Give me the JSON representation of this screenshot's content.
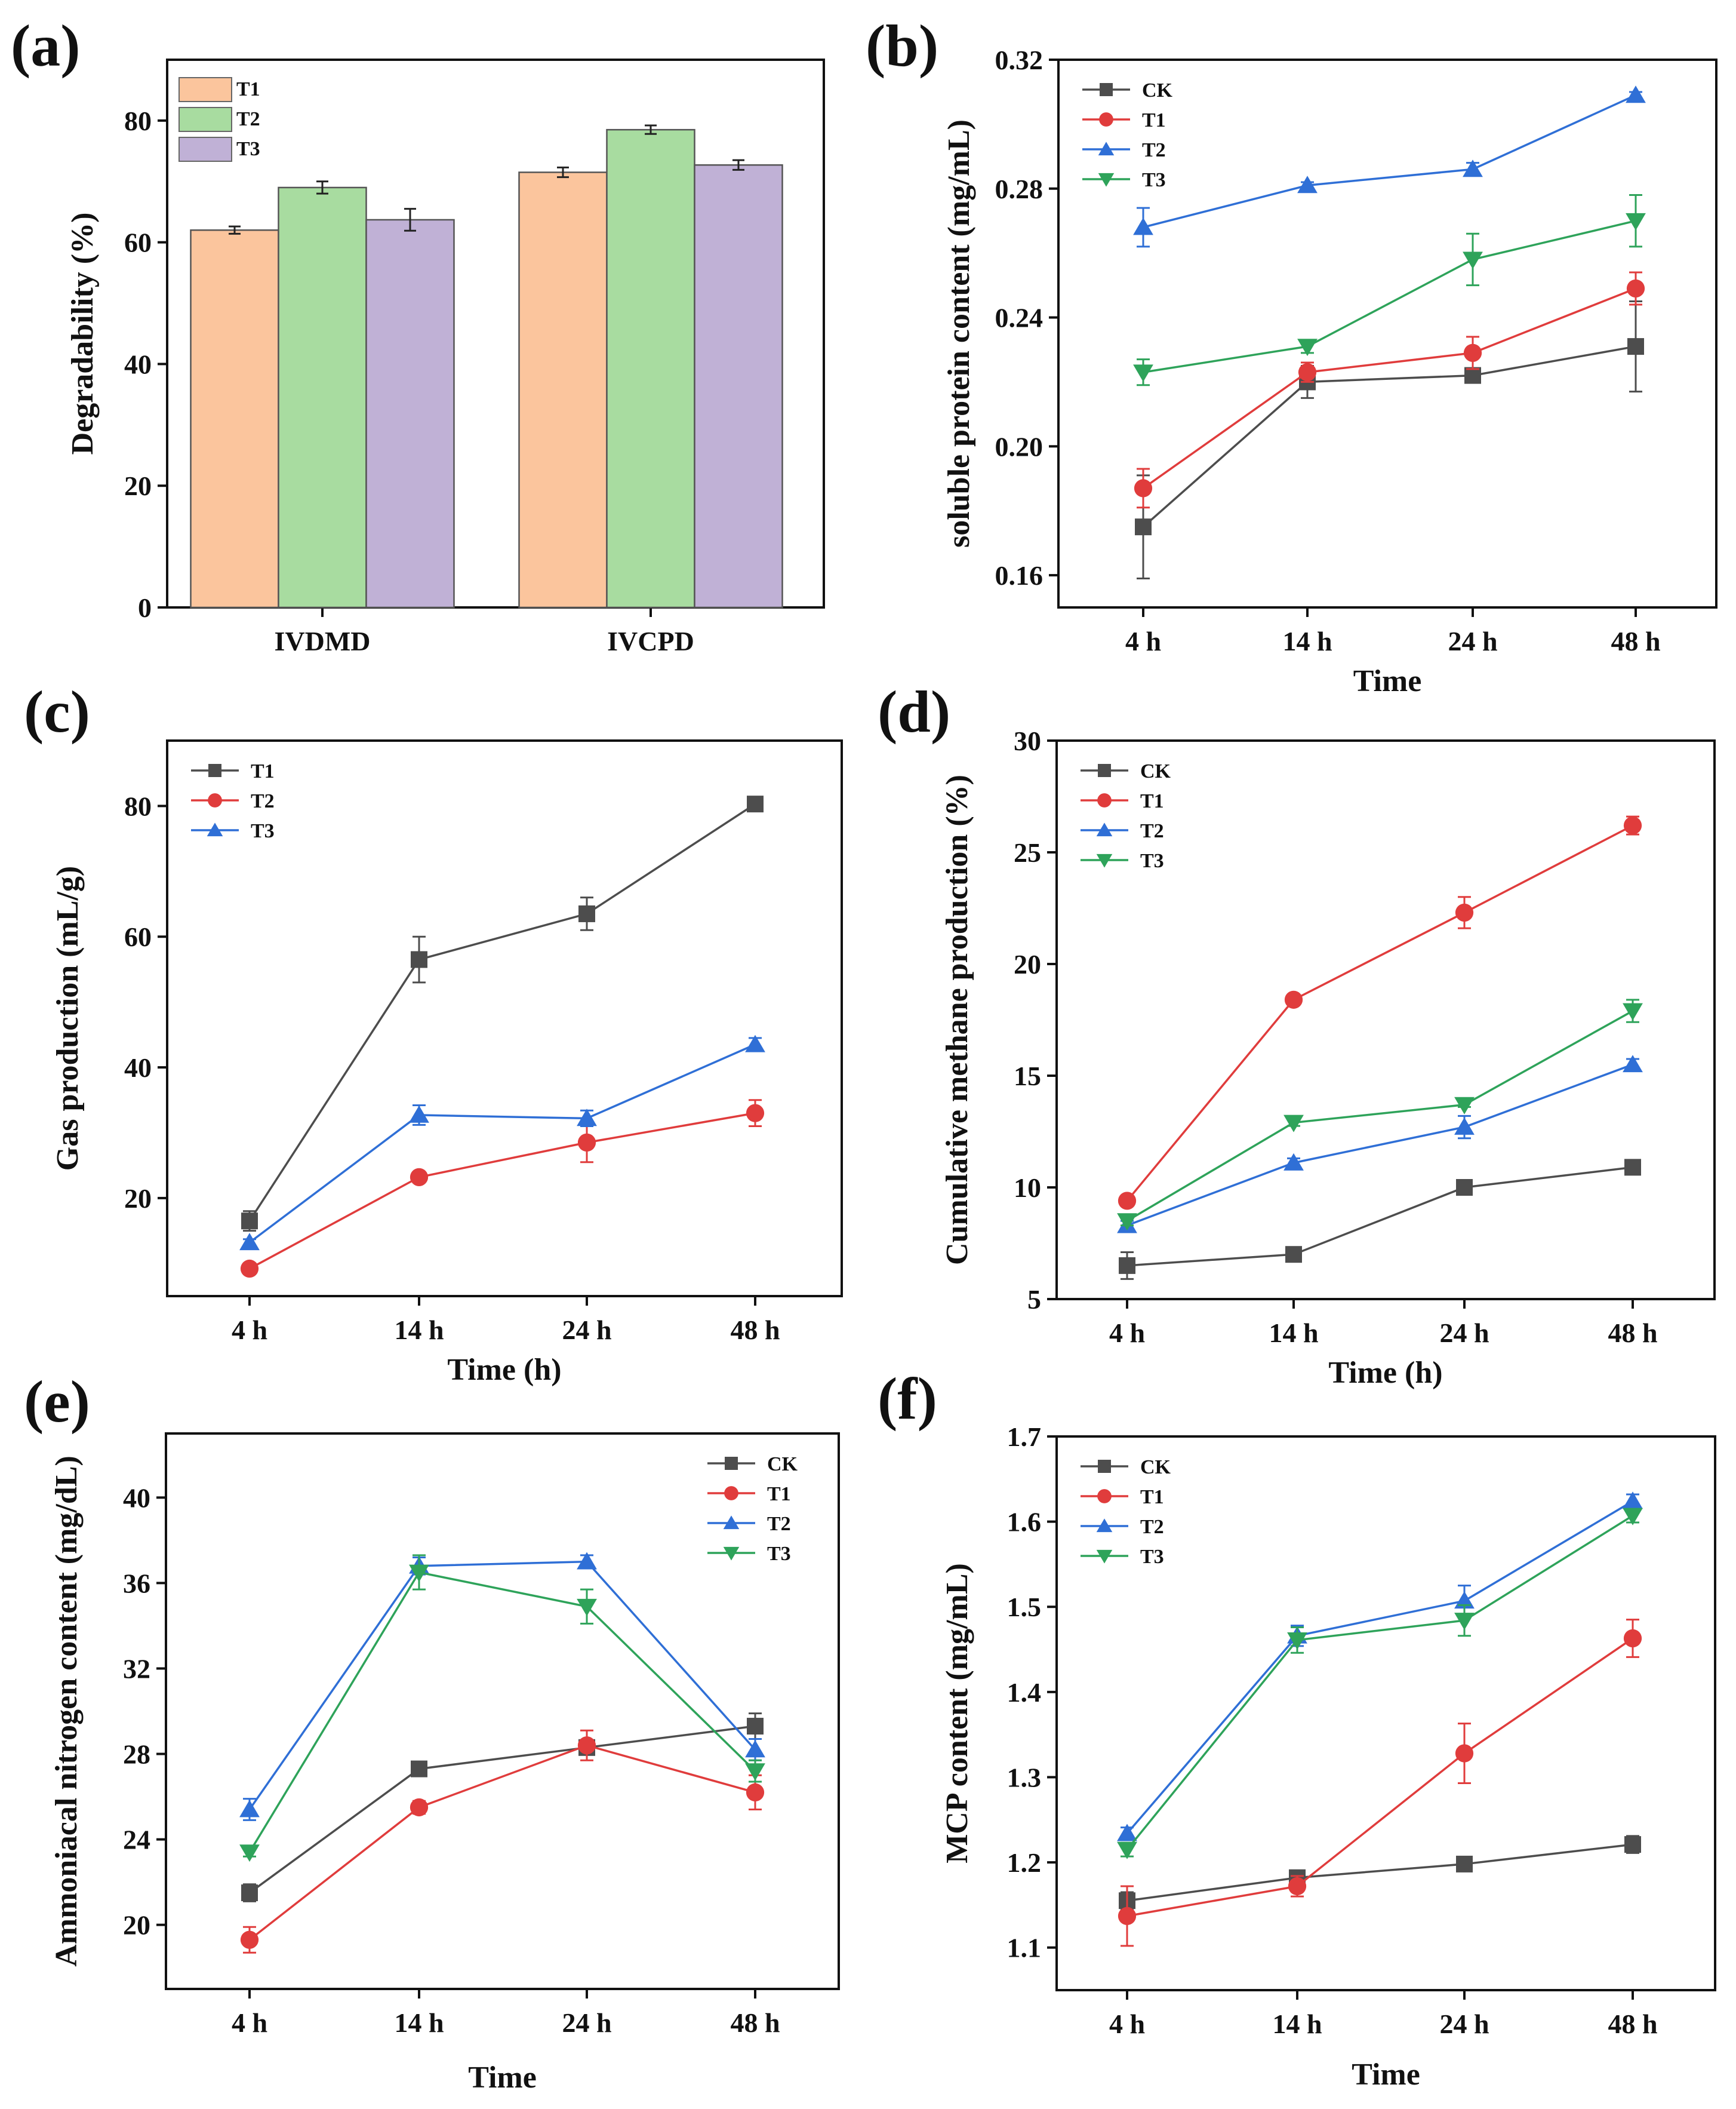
{
  "chart_data": [
    {
      "panel": "(a)",
      "type": "bar",
      "categories": [
        "IVDMD",
        "IVCPD"
      ],
      "series": [
        {
          "name": "T1",
          "values": [
            62.0,
            71.5
          ],
          "errors": [
            0.6,
            0.8
          ],
          "color": "#FBC59D"
        },
        {
          "name": "T2",
          "values": [
            69.0,
            78.5
          ],
          "errors": [
            1.0,
            0.7
          ],
          "color": "#A8DCA0"
        },
        {
          "name": "T3",
          "values": [
            63.7,
            72.7
          ],
          "errors": [
            1.8,
            0.8
          ],
          "color": "#C0B1D6"
        }
      ],
      "xlabel": "",
      "ylabel": "Degradability (%)",
      "ylim": [
        0,
        90
      ],
      "yticks": [
        "0",
        "20",
        "40",
        "60",
        "80"
      ],
      "legend": "top-left"
    },
    {
      "panel": "(b)",
      "type": "line",
      "categories": [
        "4 h",
        "14 h",
        "24 h",
        "48 h"
      ],
      "series": [
        {
          "name": "CK",
          "marker": "square",
          "color": "#4d4d4d",
          "values": [
            0.175,
            0.22,
            0.222,
            0.231
          ],
          "errors": [
            0.016,
            0.005,
            0.002,
            0.014
          ]
        },
        {
          "name": "T1",
          "marker": "circle",
          "color": "#e03c3c",
          "values": [
            0.187,
            0.223,
            0.229,
            0.249
          ],
          "errors": [
            0.006,
            0.003,
            0.005,
            0.005
          ]
        },
        {
          "name": "T2",
          "marker": "triangle-up",
          "color": "#2f6fd6",
          "values": [
            0.268,
            0.281,
            0.286,
            0.309
          ],
          "errors": [
            0.006,
            0.001,
            0.002,
            0.001
          ]
        },
        {
          "name": "T3",
          "marker": "triangle-down",
          "color": "#2ea35a",
          "values": [
            0.223,
            0.231,
            0.258,
            0.27
          ],
          "errors": [
            0.004,
            0.002,
            0.008,
            0.008
          ]
        }
      ],
      "xlabel": "Time",
      "ylabel": "soluble protein content (mg/mL)",
      "ylim": [
        0.15,
        0.32
      ],
      "yticks": [
        "0.16",
        "0.20",
        "0.24",
        "0.28",
        "0.32"
      ],
      "legend": "top-left"
    },
    {
      "panel": "(c)",
      "type": "line",
      "categories": [
        "4 h",
        "14 h",
        "24 h",
        "48 h"
      ],
      "series": [
        {
          "name": "T1",
          "marker": "square",
          "color": "#4d4d4d",
          "values": [
            16.5,
            56.5,
            63.5,
            80.3
          ],
          "errors": [
            1.5,
            3.5,
            2.5,
            0.5
          ]
        },
        {
          "name": "T2",
          "marker": "circle",
          "color": "#e03c3c",
          "values": [
            9.2,
            23.2,
            28.5,
            33.0
          ],
          "errors": [
            0.5,
            0.6,
            3.0,
            2.0
          ]
        },
        {
          "name": "T3",
          "marker": "triangle-up",
          "color": "#2f6fd6",
          "values": [
            13.2,
            32.7,
            32.2,
            43.5
          ],
          "errors": [
            0.5,
            1.5,
            1.2,
            1.0
          ]
        }
      ],
      "xlabel": "Time (h)",
      "ylabel": "Gas production (mL/g)",
      "ylim": [
        5,
        90
      ],
      "yticks": [
        "20",
        "40",
        "60",
        "80"
      ],
      "legend": "top-left"
    },
    {
      "panel": "(d)",
      "type": "line",
      "categories": [
        "4 h",
        "14 h",
        "24 h",
        "48 h"
      ],
      "series": [
        {
          "name": "CK",
          "marker": "square",
          "color": "#4d4d4d",
          "values": [
            6.5,
            7.0,
            10.0,
            10.9
          ],
          "errors": [
            0.6,
            0.1,
            0.1,
            0.15
          ]
        },
        {
          "name": "T1",
          "marker": "circle",
          "color": "#e03c3c",
          "values": [
            9.4,
            18.4,
            22.3,
            26.2
          ],
          "errors": [
            0.2,
            0.2,
            0.7,
            0.4
          ]
        },
        {
          "name": "T2",
          "marker": "triangle-up",
          "color": "#2f6fd6",
          "values": [
            8.3,
            11.1,
            12.7,
            15.5
          ],
          "errors": [
            0.2,
            0.2,
            0.5,
            0.25
          ]
        },
        {
          "name": "T3",
          "marker": "triangle-down",
          "color": "#2ea35a",
          "values": [
            8.5,
            12.9,
            13.7,
            17.9
          ],
          "errors": [
            0.2,
            0.15,
            0.1,
            0.5
          ]
        }
      ],
      "xlabel": "Time (h)",
      "ylabel": "Cumulative methane production (%)",
      "ylim": [
        5,
        30
      ],
      "yticks": [
        "5",
        "10",
        "15",
        "20",
        "25",
        "30"
      ],
      "legend": "top-left"
    },
    {
      "panel": "(e)",
      "type": "line",
      "categories": [
        "4 h",
        "14 h",
        "24 h",
        "48 h"
      ],
      "series": [
        {
          "name": "CK",
          "marker": "square",
          "color": "#4d4d4d",
          "values": [
            21.5,
            27.3,
            28.3,
            29.3
          ],
          "errors": [
            0.4,
            0.3,
            0.3,
            0.6
          ]
        },
        {
          "name": "T1",
          "marker": "circle",
          "color": "#e03c3c",
          "values": [
            19.3,
            25.5,
            28.4,
            26.2
          ],
          "errors": [
            0.6,
            0.3,
            0.7,
            0.8
          ]
        },
        {
          "name": "T2",
          "marker": "triangle-up",
          "color": "#2f6fd6",
          "values": [
            25.4,
            36.8,
            37.0,
            28.2
          ],
          "errors": [
            0.5,
            0.4,
            0.3,
            0.5
          ]
        },
        {
          "name": "T3",
          "marker": "triangle-down",
          "color": "#2ea35a",
          "values": [
            23.4,
            36.5,
            34.9,
            27.2
          ],
          "errors": [
            0.2,
            0.8,
            0.8,
            0.5
          ]
        }
      ],
      "xlabel": "Time",
      "ylabel": "Ammoniacal nitrogen content (mg/dL)",
      "ylim": [
        17,
        43
      ],
      "yticks": [
        "20",
        "24",
        "28",
        "32",
        "36",
        "40"
      ],
      "legend": "top-right"
    },
    {
      "panel": "(f)",
      "type": "line",
      "categories": [
        "4 h",
        "14 h",
        "24 h",
        "48 h"
      ],
      "series": [
        {
          "name": "CK",
          "marker": "square",
          "color": "#4d4d4d",
          "values": [
            1.155,
            1.182,
            1.198,
            1.221
          ],
          "errors": [
            0.01,
            0.005,
            0.004,
            0.01
          ]
        },
        {
          "name": "T1",
          "marker": "circle",
          "color": "#e03c3c",
          "values": [
            1.137,
            1.172,
            1.328,
            1.463
          ],
          "errors": [
            0.035,
            0.012,
            0.035,
            0.022
          ]
        },
        {
          "name": "T2",
          "marker": "triangle-up",
          "color": "#2f6fd6",
          "values": [
            1.234,
            1.466,
            1.507,
            1.624
          ],
          "errors": [
            0.007,
            0.012,
            0.018,
            0.008
          ]
        },
        {
          "name": "T3",
          "marker": "triangle-down",
          "color": "#2ea35a",
          "values": [
            1.215,
            1.461,
            1.484,
            1.607
          ],
          "errors": [
            0.008,
            0.015,
            0.018,
            0.008
          ]
        }
      ],
      "xlabel": "Time",
      "ylabel": "MCP content (mg/mL)",
      "ylim": [
        1.05,
        1.7
      ],
      "yticks": [
        "1.1",
        "1.2",
        "1.3",
        "1.4",
        "1.5",
        "1.6",
        "1.7"
      ],
      "legend": "top-left"
    }
  ]
}
